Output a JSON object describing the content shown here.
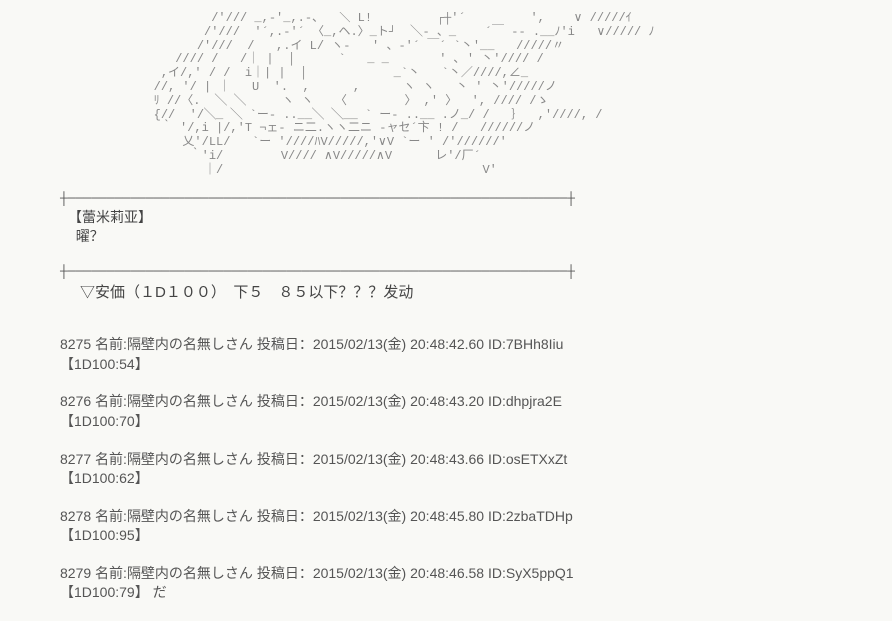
{
  "ascii_art": "                     /'/// _,-'_,.-、  ＼ L!         ┌┼'´         ',    ∨ /////ｲ\n                    /'///  '´,.‐'´ 〈_,ヘ.〉_ト┘  ╲- 、_    ´￣ ‐- .__ﾉ'i   ∨///// ﾉ\n                   /'///  /   ,.イ L/ ヽ-   ' 、-'´ ￣´ `丶'__   /////〃\n                //// /   /｜ |  │      `   _ _       ' ､ ' 丶'//// /\n              ,イ/,' / /  i｜| |  │            _`丶   `丶／////,∠_\n             //, '/ | ｜   U  '.  ,      ,      ヽ ヽ   丶 ' 丶'/////ノ\n             ﾘ //〈.  ╲ ╲     ヽ ヽ   〈        〉 ,' 〉  ', //// /ゝ\n             {//  '/╲_ ╲ `ー- ..__╲ ╲__ ` ー- ..__ .ノ_/ /   ｝  ,'////, /\n              ｀ ′/,i |/,'T ¬ェ- ニ二.ヽヽ二ニ -ャセ´卞 ! /   //////ノ\n                 乂'/LL/   `ー '////ﾊV/////,'∨V `ー ′ /'//////′\n                  ｀'i/        V//// ∧V/////∧V      レ'/厂´\n                    ｜/                                    V′",
  "divider_line": "┼────────────────────────────────────────────────────────────────┼",
  "speaker_name": "【蕾米莉亚】",
  "speaker_line": "曜？",
  "prompt": "▽安価（１D１００）　下５　８５以下？？？发动",
  "posts": [
    {
      "num": "8275",
      "name": "隔壁内の名無しさん",
      "date": "2015/02/13(金) 20:48:42.60",
      "id": "7BHh8Iiu",
      "roll": "【1D100:54】",
      "extra": ""
    },
    {
      "num": "8276",
      "name": "隔壁内の名無しさん",
      "date": "2015/02/13(金) 20:48:43.20",
      "id": "dhpjra2E",
      "roll": "【1D100:70】",
      "extra": ""
    },
    {
      "num": "8277",
      "name": "隔壁内の名無しさん",
      "date": "2015/02/13(金) 20:48:43.66",
      "id": "osETXxZt",
      "roll": "【1D100:62】",
      "extra": ""
    },
    {
      "num": "8278",
      "name": "隔壁内の名無しさん",
      "date": "2015/02/13(金) 20:48:45.80",
      "id": "2zbaTDHp",
      "roll": "【1D100:95】",
      "extra": ""
    },
    {
      "num": "8279",
      "name": "隔壁内の名無しさん",
      "date": "2015/02/13(金) 20:48:46.58",
      "id": "SyX5ppQ1",
      "roll": "【1D100:79】",
      "extra": " だ"
    }
  ]
}
